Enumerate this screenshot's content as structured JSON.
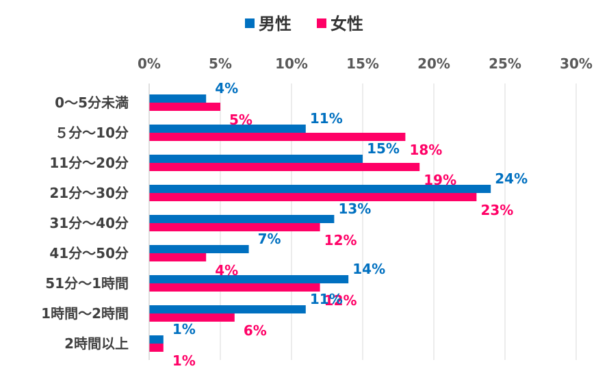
{
  "chart_data": {
    "type": "bar",
    "orientation": "horizontal",
    "categories": [
      "0～5分未満",
      "５分～10分",
      "11分～20分",
      "21分～30分",
      "31分～40分",
      "41分～50分",
      "51分～1時間",
      "1時間～2時間",
      "2時間以上"
    ],
    "series": [
      {
        "name": "男性",
        "color": "#0070C0",
        "values": [
          4,
          11,
          15,
          24,
          13,
          7,
          14,
          11,
          1
        ],
        "labels": [
          "4%",
          "11%",
          "15%",
          "24%",
          "13%",
          "7%",
          "14%",
          "11%",
          "1%"
        ]
      },
      {
        "name": "女性",
        "color": "#FF0066",
        "values": [
          5,
          18,
          19,
          23,
          12,
          4,
          12,
          6,
          1
        ],
        "labels": [
          "5%",
          "18%",
          "19%",
          "23%",
          "12%",
          "4%",
          "12%",
          "6%",
          "1%"
        ]
      }
    ],
    "xlim": [
      0,
      30
    ],
    "xticks": [
      0,
      5,
      10,
      15,
      20,
      25,
      30
    ],
    "xtick_labels": [
      "0%",
      "5%",
      "10%",
      "15%",
      "20%",
      "25%",
      "30%"
    ],
    "axis_position": "top",
    "grid": true,
    "legend": "top-center"
  }
}
